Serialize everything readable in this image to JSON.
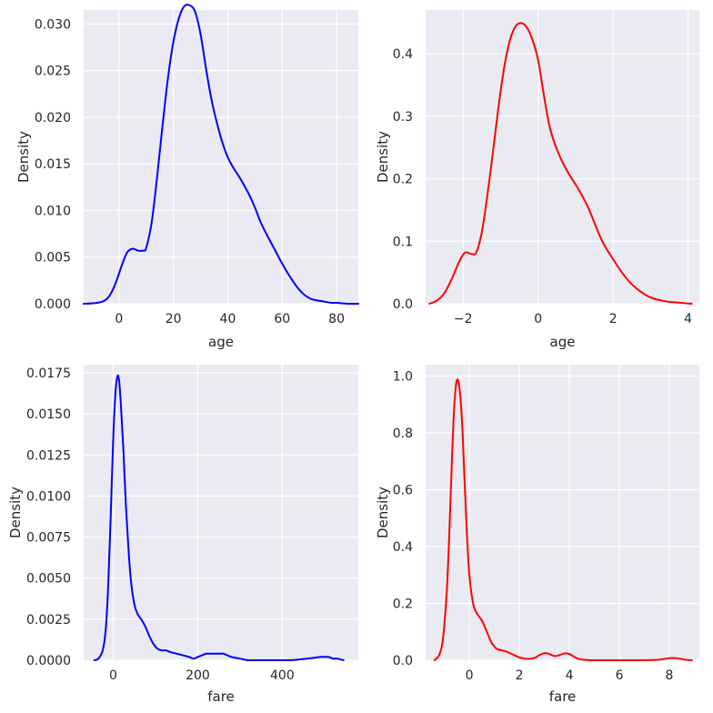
{
  "chart_data": [
    {
      "type": "line",
      "xlabel": "age",
      "ylabel": "Density",
      "xlim": [
        -13,
        88
      ],
      "ylim": [
        0,
        0.0315
      ],
      "xticks": [
        0,
        20,
        40,
        60,
        80
      ],
      "xtick_labels": [
        "0",
        "20",
        "40",
        "60",
        "80"
      ],
      "yticks": [
        0,
        0.005,
        0.01,
        0.015,
        0.02,
        0.025,
        0.03
      ],
      "ytick_labels": [
        "0.000",
        "0.005",
        "0.010",
        "0.015",
        "0.020",
        "0.025",
        "0.030"
      ],
      "grid": true,
      "color": "#0000ff",
      "series": [
        {
          "x": [
            -13,
            -8,
            -5,
            -3,
            -1,
            1,
            3,
            5,
            7,
            9,
            10,
            12,
            14,
            16,
            18,
            20,
            22,
            24,
            26,
            28,
            30,
            32,
            34,
            36,
            38,
            40,
            42,
            44,
            46,
            48,
            50,
            52,
            54,
            56,
            58,
            60,
            62,
            64,
            66,
            68,
            70,
            72,
            74,
            76,
            78,
            80,
            84,
            88
          ],
          "y": [
            0.0,
            0.0001,
            0.0004,
            0.0011,
            0.0024,
            0.0041,
            0.0055,
            0.0059,
            0.0057,
            0.0057,
            0.006,
            0.0087,
            0.0136,
            0.0191,
            0.0242,
            0.0281,
            0.0306,
            0.0319,
            0.032,
            0.0313,
            0.0289,
            0.0252,
            0.0219,
            0.0194,
            0.0173,
            0.0157,
            0.0146,
            0.0137,
            0.0127,
            0.0116,
            0.0103,
            0.0088,
            0.0076,
            0.0065,
            0.0054,
            0.0043,
            0.0033,
            0.0024,
            0.0016,
            0.001,
            0.0006,
            0.0004,
            0.0003,
            0.0002,
            0.0001,
            0.0001,
            0.0,
            0.0
          ]
        }
      ]
    },
    {
      "type": "line",
      "xlabel": "age",
      "ylabel": "Density",
      "xlim": [
        -3.0,
        4.3
      ],
      "ylim": [
        0,
        0.47
      ],
      "xticks": [
        -2,
        0,
        2,
        4
      ],
      "xtick_labels": [
        "−2",
        "0",
        "2",
        "4"
      ],
      "yticks": [
        0,
        0.1,
        0.2,
        0.3,
        0.4
      ],
      "ytick_labels": [
        "0.0",
        "0.1",
        "0.2",
        "0.3",
        "0.4"
      ],
      "grid": true,
      "color": "#ff0000",
      "series": [
        {
          "x": [
            -2.9,
            -2.7,
            -2.5,
            -2.3,
            -2.1,
            -1.95,
            -1.8,
            -1.65,
            -1.5,
            -1.35,
            -1.2,
            -1.05,
            -0.9,
            -0.75,
            -0.6,
            -0.45,
            -0.3,
            -0.15,
            0.0,
            0.15,
            0.3,
            0.45,
            0.6,
            0.75,
            0.9,
            1.05,
            1.2,
            1.35,
            1.5,
            1.65,
            1.8,
            1.95,
            2.1,
            2.3,
            2.5,
            2.7,
            2.9,
            3.1,
            3.3,
            3.5,
            3.7,
            3.9,
            4.1
          ],
          "y": [
            0.0,
            0.005,
            0.017,
            0.04,
            0.068,
            0.082,
            0.08,
            0.082,
            0.115,
            0.175,
            0.245,
            0.318,
            0.38,
            0.422,
            0.444,
            0.449,
            0.442,
            0.422,
            0.39,
            0.335,
            0.285,
            0.255,
            0.233,
            0.215,
            0.2,
            0.186,
            0.17,
            0.152,
            0.13,
            0.108,
            0.09,
            0.076,
            0.062,
            0.045,
            0.031,
            0.021,
            0.013,
            0.008,
            0.005,
            0.003,
            0.002,
            0.001,
            0.0
          ]
        }
      ]
    },
    {
      "type": "line",
      "xlabel": "fare",
      "ylabel": "Density",
      "xlim": [
        -70,
        580
      ],
      "ylim": [
        0,
        0.018
      ],
      "xticks": [
        0,
        200,
        400
      ],
      "xtick_labels": [
        "0",
        "200",
        "400"
      ],
      "yticks": [
        0,
        0.0025,
        0.005,
        0.0075,
        0.01,
        0.0125,
        0.015,
        0.0175
      ],
      "ytick_labels": [
        "0.0000",
        "0.0025",
        "0.0050",
        "0.0075",
        "0.0100",
        "0.0125",
        "0.0150",
        "0.0175"
      ],
      "grid": true,
      "color": "#0000ff",
      "series": [
        {
          "x": [
            -45,
            -35,
            -25,
            -18,
            -12,
            -6,
            0,
            5,
            10,
            14,
            18,
            24,
            30,
            36,
            42,
            50,
            58,
            66,
            75,
            85,
            95,
            105,
            115,
            125,
            135,
            150,
            165,
            180,
            190,
            200,
            210,
            220,
            230,
            240,
            250,
            260,
            270,
            280,
            300,
            320,
            350,
            380,
            420,
            460,
            490,
            500,
            510,
            520,
            530,
            545
          ],
          "y": [
            0.0,
            0.0001,
            0.0006,
            0.0018,
            0.0045,
            0.0088,
            0.0135,
            0.0162,
            0.0173,
            0.017,
            0.0156,
            0.0128,
            0.0094,
            0.0068,
            0.0048,
            0.0034,
            0.0028,
            0.0025,
            0.0021,
            0.0015,
            0.001,
            0.0007,
            0.0006,
            0.0006,
            0.0005,
            0.0004,
            0.0003,
            0.0002,
            0.0001,
            0.0002,
            0.0003,
            0.0004,
            0.0004,
            0.0004,
            0.0004,
            0.0004,
            0.0003,
            0.0002,
            0.0001,
            0.0,
            0.0,
            0.0,
            0.0,
            0.0001,
            0.0002,
            0.0002,
            0.0002,
            0.0001,
            0.0001,
            0.0
          ]
        }
      ]
    },
    {
      "type": "line",
      "xlabel": "fare",
      "ylabel": "Density",
      "xlim": [
        -1.75,
        9.2
      ],
      "ylim": [
        0,
        1.04
      ],
      "xticks": [
        0,
        2,
        4,
        6,
        8
      ],
      "xtick_labels": [
        "0",
        "2",
        "4",
        "6",
        "8"
      ],
      "yticks": [
        0,
        0.2,
        0.4,
        0.6,
        0.8,
        1.0
      ],
      "ytick_labels": [
        "0.0",
        "0.2",
        "0.4",
        "0.6",
        "0.8",
        "1.0"
      ],
      "grid": true,
      "color": "#ff0000",
      "series": [
        {
          "x": [
            -1.4,
            -1.2,
            -1.05,
            -0.9,
            -0.8,
            -0.7,
            -0.6,
            -0.5,
            -0.4,
            -0.3,
            -0.2,
            -0.1,
            0.0,
            0.15,
            0.3,
            0.5,
            0.7,
            0.9,
            1.1,
            1.3,
            1.5,
            1.7,
            2.0,
            2.3,
            2.6,
            2.8,
            3.0,
            3.2,
            3.4,
            3.6,
            3.8,
            4.0,
            4.2,
            4.4,
            4.7,
            5.2,
            6.0,
            7.0,
            7.6,
            7.9,
            8.1,
            8.3,
            8.5,
            8.7,
            8.9
          ],
          "y": [
            0.0,
            0.02,
            0.08,
            0.25,
            0.45,
            0.7,
            0.9,
            0.985,
            0.96,
            0.85,
            0.65,
            0.45,
            0.3,
            0.2,
            0.165,
            0.14,
            0.1,
            0.06,
            0.04,
            0.035,
            0.03,
            0.022,
            0.01,
            0.005,
            0.008,
            0.018,
            0.025,
            0.022,
            0.015,
            0.018,
            0.024,
            0.022,
            0.012,
            0.004,
            0.001,
            0.0,
            0.0,
            0.0,
            0.002,
            0.006,
            0.008,
            0.007,
            0.004,
            0.001,
            0.0
          ]
        }
      ]
    }
  ]
}
